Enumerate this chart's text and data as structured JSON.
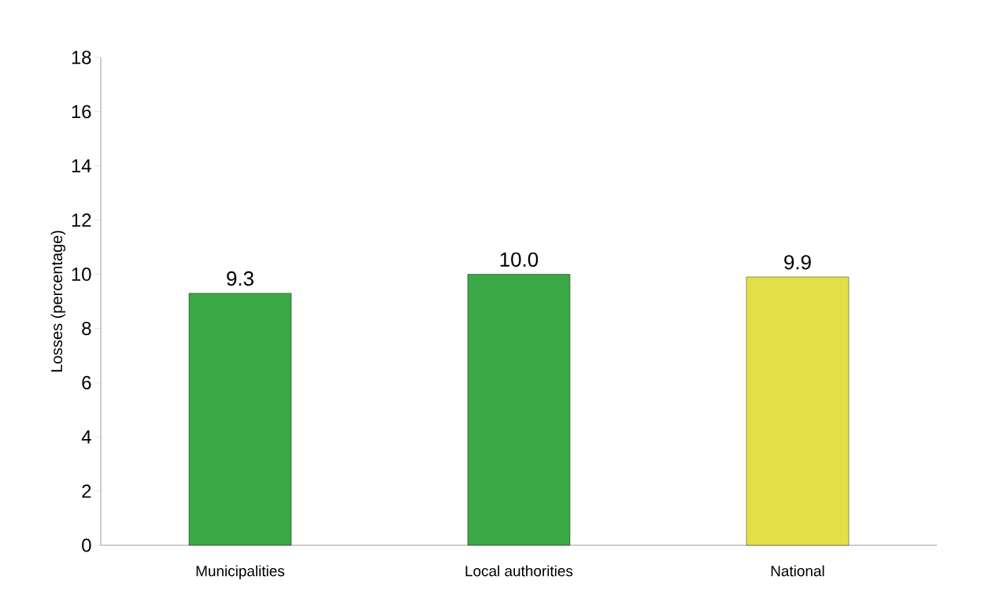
{
  "chart_data": {
    "type": "bar",
    "ylabel": "Losses (percentage)",
    "categories": [
      "Municipalities",
      "Local authorities",
      "National"
    ],
    "values": [
      9.3,
      10.0,
      9.9
    ],
    "colors": [
      "#3aa845",
      "#3aa845",
      "#e2e046"
    ],
    "value_labels": [
      "9.3",
      "10.0",
      "9.9"
    ],
    "ylim": [
      0,
      18
    ],
    "yticks": [
      0,
      2,
      4,
      6,
      8,
      10,
      12,
      14,
      16,
      18
    ],
    "grid": false
  }
}
